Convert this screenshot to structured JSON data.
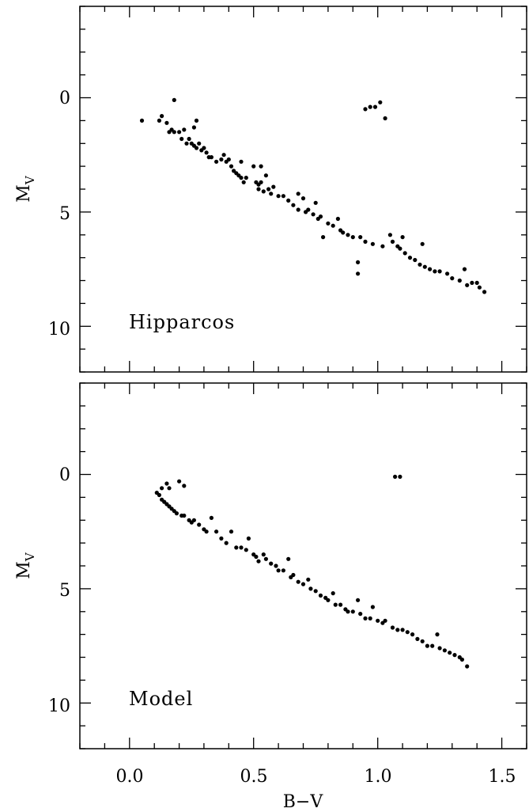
{
  "chart_data": [
    {
      "type": "scatter",
      "annotation": "Hipparcos",
      "xlabel": "",
      "ylabel": "M",
      "ylabel_subscript": "V",
      "xlim": [
        -0.2,
        1.6
      ],
      "ylim": [
        12,
        -4
      ],
      "y_inverted": true,
      "grid": false,
      "x_tick_labels": [],
      "y_ticks": [
        0,
        5,
        10
      ],
      "y_tick_labels": [
        "0",
        "5",
        "10"
      ],
      "marker_color": "#000000",
      "points": [
        [
          0.05,
          1.0
        ],
        [
          0.12,
          1.0
        ],
        [
          0.13,
          0.8
        ],
        [
          0.15,
          1.1
        ],
        [
          0.16,
          1.5
        ],
        [
          0.17,
          1.4
        ],
        [
          0.18,
          0.1
        ],
        [
          0.18,
          1.5
        ],
        [
          0.2,
          1.5
        ],
        [
          0.21,
          1.8
        ],
        [
          0.22,
          1.4
        ],
        [
          0.23,
          2.0
        ],
        [
          0.24,
          1.8
        ],
        [
          0.25,
          2.0
        ],
        [
          0.26,
          1.3
        ],
        [
          0.26,
          2.1
        ],
        [
          0.27,
          1.0
        ],
        [
          0.27,
          2.2
        ],
        [
          0.28,
          2.0
        ],
        [
          0.29,
          2.3
        ],
        [
          0.3,
          2.2
        ],
        [
          0.31,
          2.4
        ],
        [
          0.32,
          2.6
        ],
        [
          0.33,
          2.6
        ],
        [
          0.35,
          2.8
        ],
        [
          0.37,
          2.7
        ],
        [
          0.38,
          2.5
        ],
        [
          0.39,
          2.8
        ],
        [
          0.4,
          2.7
        ],
        [
          0.41,
          3.0
        ],
        [
          0.42,
          3.2
        ],
        [
          0.43,
          3.3
        ],
        [
          0.44,
          3.4
        ],
        [
          0.45,
          2.8
        ],
        [
          0.45,
          3.5
        ],
        [
          0.46,
          3.7
        ],
        [
          0.47,
          3.5
        ],
        [
          0.5,
          3.0
        ],
        [
          0.51,
          3.7
        ],
        [
          0.52,
          3.8
        ],
        [
          0.52,
          4.0
        ],
        [
          0.53,
          3.0
        ],
        [
          0.53,
          3.7
        ],
        [
          0.54,
          4.1
        ],
        [
          0.55,
          3.4
        ],
        [
          0.56,
          4.0
        ],
        [
          0.57,
          4.2
        ],
        [
          0.58,
          3.9
        ],
        [
          0.6,
          4.3
        ],
        [
          0.62,
          4.3
        ],
        [
          0.64,
          4.5
        ],
        [
          0.66,
          4.7
        ],
        [
          0.68,
          4.2
        ],
        [
          0.68,
          4.9
        ],
        [
          0.7,
          4.4
        ],
        [
          0.71,
          5.0
        ],
        [
          0.72,
          4.9
        ],
        [
          0.74,
          5.1
        ],
        [
          0.75,
          4.6
        ],
        [
          0.76,
          5.3
        ],
        [
          0.77,
          5.2
        ],
        [
          0.78,
          6.1
        ],
        [
          0.8,
          5.5
        ],
        [
          0.82,
          5.6
        ],
        [
          0.84,
          5.3
        ],
        [
          0.85,
          5.8
        ],
        [
          0.86,
          5.9
        ],
        [
          0.88,
          6.0
        ],
        [
          0.9,
          6.1
        ],
        [
          0.92,
          7.2
        ],
        [
          0.92,
          7.7
        ],
        [
          0.93,
          6.1
        ],
        [
          0.95,
          6.3
        ],
        [
          0.95,
          0.5
        ],
        [
          0.97,
          0.4
        ],
        [
          0.98,
          6.4
        ],
        [
          0.99,
          0.4
        ],
        [
          1.01,
          0.2
        ],
        [
          1.02,
          6.5
        ],
        [
          1.03,
          0.9
        ],
        [
          1.05,
          6.0
        ],
        [
          1.06,
          6.3
        ],
        [
          1.08,
          6.5
        ],
        [
          1.09,
          6.6
        ],
        [
          1.1,
          6.1
        ],
        [
          1.11,
          6.8
        ],
        [
          1.13,
          7.0
        ],
        [
          1.15,
          7.1
        ],
        [
          1.17,
          7.3
        ],
        [
          1.18,
          6.4
        ],
        [
          1.19,
          7.4
        ],
        [
          1.21,
          7.5
        ],
        [
          1.23,
          7.6
        ],
        [
          1.25,
          7.6
        ],
        [
          1.28,
          7.7
        ],
        [
          1.3,
          7.9
        ],
        [
          1.33,
          8.0
        ],
        [
          1.35,
          7.5
        ],
        [
          1.36,
          8.2
        ],
        [
          1.38,
          8.1
        ],
        [
          1.4,
          8.1
        ],
        [
          1.41,
          8.3
        ],
        [
          1.43,
          8.5
        ]
      ]
    },
    {
      "type": "scatter",
      "annotation": "Model",
      "xlabel": "B−V",
      "ylabel": "M",
      "ylabel_subscript": "V",
      "xlim": [
        -0.2,
        1.6
      ],
      "ylim": [
        12,
        -4
      ],
      "y_inverted": true,
      "grid": false,
      "x_ticks": [
        0.0,
        0.5,
        1.0,
        1.5
      ],
      "x_tick_labels": [
        "0.0",
        "0.5",
        "1.0",
        "1.5"
      ],
      "y_ticks": [
        0,
        5,
        10
      ],
      "y_tick_labels": [
        "0",
        "5",
        "10"
      ],
      "marker_color": "#000000",
      "points": [
        [
          0.11,
          0.8
        ],
        [
          0.12,
          0.9
        ],
        [
          0.13,
          0.6
        ],
        [
          0.13,
          1.1
        ],
        [
          0.14,
          1.2
        ],
        [
          0.15,
          0.4
        ],
        [
          0.15,
          1.3
        ],
        [
          0.16,
          0.6
        ],
        [
          0.16,
          1.4
        ],
        [
          0.17,
          1.5
        ],
        [
          0.18,
          1.6
        ],
        [
          0.19,
          1.7
        ],
        [
          0.2,
          0.3
        ],
        [
          0.21,
          1.8
        ],
        [
          0.22,
          0.5
        ],
        [
          0.22,
          1.8
        ],
        [
          0.24,
          2.0
        ],
        [
          0.25,
          2.1
        ],
        [
          0.26,
          2.0
        ],
        [
          0.28,
          2.2
        ],
        [
          0.3,
          2.4
        ],
        [
          0.31,
          2.5
        ],
        [
          0.33,
          1.9
        ],
        [
          0.35,
          2.5
        ],
        [
          0.37,
          2.8
        ],
        [
          0.39,
          3.0
        ],
        [
          0.41,
          2.5
        ],
        [
          0.43,
          3.2
        ],
        [
          0.45,
          3.2
        ],
        [
          0.47,
          3.3
        ],
        [
          0.48,
          2.8
        ],
        [
          0.5,
          3.5
        ],
        [
          0.51,
          3.6
        ],
        [
          0.52,
          3.8
        ],
        [
          0.54,
          3.5
        ],
        [
          0.55,
          3.7
        ],
        [
          0.57,
          3.9
        ],
        [
          0.59,
          4.0
        ],
        [
          0.6,
          4.2
        ],
        [
          0.62,
          4.2
        ],
        [
          0.64,
          3.7
        ],
        [
          0.65,
          4.5
        ],
        [
          0.66,
          4.4
        ],
        [
          0.68,
          4.7
        ],
        [
          0.7,
          4.8
        ],
        [
          0.72,
          4.6
        ],
        [
          0.73,
          5.0
        ],
        [
          0.75,
          5.1
        ],
        [
          0.77,
          5.3
        ],
        [
          0.79,
          5.4
        ],
        [
          0.8,
          5.5
        ],
        [
          0.82,
          5.2
        ],
        [
          0.83,
          5.7
        ],
        [
          0.85,
          5.7
        ],
        [
          0.87,
          5.9
        ],
        [
          0.88,
          6.0
        ],
        [
          0.9,
          6.0
        ],
        [
          0.92,
          5.5
        ],
        [
          0.93,
          6.1
        ],
        [
          0.95,
          6.3
        ],
        [
          0.97,
          6.3
        ],
        [
          0.98,
          5.8
        ],
        [
          1.0,
          6.4
        ],
        [
          1.02,
          6.5
        ],
        [
          1.03,
          6.4
        ],
        [
          1.06,
          6.7
        ],
        [
          1.07,
          0.1
        ],
        [
          1.08,
          6.8
        ],
        [
          1.09,
          0.1
        ],
        [
          1.1,
          6.8
        ],
        [
          1.12,
          6.9
        ],
        [
          1.14,
          7.0
        ],
        [
          1.16,
          7.2
        ],
        [
          1.18,
          7.3
        ],
        [
          1.2,
          7.5
        ],
        [
          1.22,
          7.5
        ],
        [
          1.24,
          7.0
        ],
        [
          1.25,
          7.6
        ],
        [
          1.27,
          7.7
        ],
        [
          1.29,
          7.8
        ],
        [
          1.31,
          7.9
        ],
        [
          1.33,
          8.0
        ],
        [
          1.34,
          8.1
        ],
        [
          1.36,
          8.4
        ]
      ]
    }
  ]
}
